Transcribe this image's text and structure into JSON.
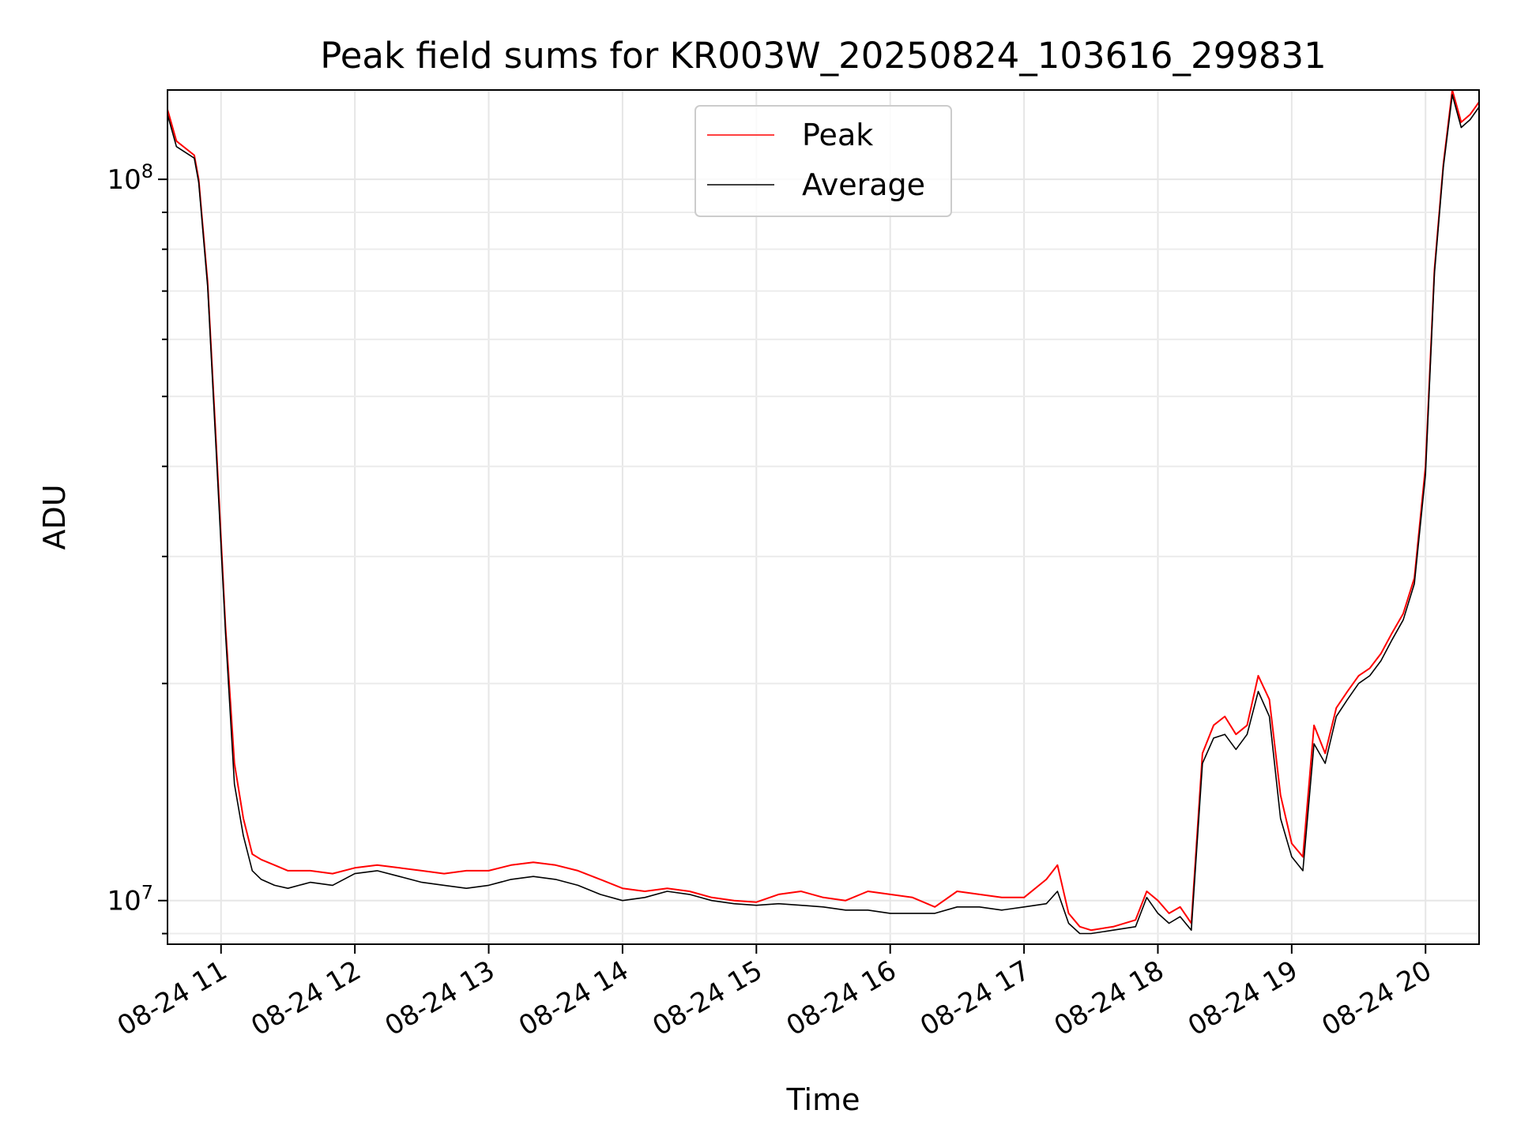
{
  "chart_data": {
    "type": "line",
    "title": "Peak field sums for KR003W_20250824_103616_299831",
    "xlabel": "Time",
    "ylabel": "ADU",
    "xlim": [
      "2025-08-24 10:36",
      "2025-08-24 20:24"
    ],
    "ylim": [
      8700000,
      133000000
    ],
    "yscale": "log",
    "grid": true,
    "legend_position": "upper center",
    "x_tick_labels": [
      "08-24 11",
      "08-24 12",
      "08-24 13",
      "08-24 14",
      "08-24 15",
      "08-24 16",
      "08-24 17",
      "08-24 18",
      "08-24 19",
      "08-24 20"
    ],
    "y_tick_labels": [
      {
        "value": 10000000,
        "base": "10",
        "exp": "7"
      },
      {
        "value": 100000000,
        "base": "10",
        "exp": "8"
      }
    ],
    "series": [
      {
        "name": "Peak",
        "color": "#ff0000",
        "x": [
          "2025-08-24 10:36",
          "2025-08-24 10:40",
          "2025-08-24 10:48",
          "2025-08-24 10:50",
          "2025-08-24 10:54",
          "2025-08-24 10:58",
          "2025-08-24 11:02",
          "2025-08-24 11:06",
          "2025-08-24 11:10",
          "2025-08-24 11:14",
          "2025-08-24 11:18",
          "2025-08-24 11:24",
          "2025-08-24 11:30",
          "2025-08-24 11:40",
          "2025-08-24 11:50",
          "2025-08-24 12:00",
          "2025-08-24 12:10",
          "2025-08-24 12:20",
          "2025-08-24 12:30",
          "2025-08-24 12:40",
          "2025-08-24 12:50",
          "2025-08-24 13:00",
          "2025-08-24 13:10",
          "2025-08-24 13:20",
          "2025-08-24 13:30",
          "2025-08-24 13:40",
          "2025-08-24 13:50",
          "2025-08-24 14:00",
          "2025-08-24 14:10",
          "2025-08-24 14:20",
          "2025-08-24 14:30",
          "2025-08-24 14:40",
          "2025-08-24 14:50",
          "2025-08-24 15:00",
          "2025-08-24 15:10",
          "2025-08-24 15:20",
          "2025-08-24 15:30",
          "2025-08-24 15:40",
          "2025-08-24 15:50",
          "2025-08-24 16:00",
          "2025-08-24 16:10",
          "2025-08-24 16:20",
          "2025-08-24 16:30",
          "2025-08-24 16:40",
          "2025-08-24 16:50",
          "2025-08-24 17:00",
          "2025-08-24 17:10",
          "2025-08-24 17:15",
          "2025-08-24 17:20",
          "2025-08-24 17:25",
          "2025-08-24 17:30",
          "2025-08-24 17:40",
          "2025-08-24 17:50",
          "2025-08-24 17:55",
          "2025-08-24 18:00",
          "2025-08-24 18:05",
          "2025-08-24 18:10",
          "2025-08-24 18:15",
          "2025-08-24 18:20",
          "2025-08-24 18:25",
          "2025-08-24 18:30",
          "2025-08-24 18:35",
          "2025-08-24 18:40",
          "2025-08-24 18:45",
          "2025-08-24 18:50",
          "2025-08-24 18:55",
          "2025-08-24 19:00",
          "2025-08-24 19:05",
          "2025-08-24 19:10",
          "2025-08-24 19:15",
          "2025-08-24 19:20",
          "2025-08-24 19:25",
          "2025-08-24 19:30",
          "2025-08-24 19:35",
          "2025-08-24 19:40",
          "2025-08-24 19:45",
          "2025-08-24 19:50",
          "2025-08-24 19:55",
          "2025-08-24 20:00",
          "2025-08-24 20:04",
          "2025-08-24 20:08",
          "2025-08-24 20:12",
          "2025-08-24 20:16",
          "2025-08-24 20:20",
          "2025-08-24 20:24"
        ],
        "y": [
          125000000,
          113000000,
          108000000,
          100000000,
          72000000,
          42000000,
          24000000,
          15500000,
          13000000,
          11600000,
          11400000,
          11200000,
          11000000,
          11000000,
          10900000,
          11100000,
          11200000,
          11100000,
          11000000,
          10900000,
          11000000,
          11000000,
          11200000,
          11300000,
          11200000,
          11000000,
          10700000,
          10400000,
          10300000,
          10400000,
          10300000,
          10100000,
          10000000,
          9950000,
          10200000,
          10300000,
          10100000,
          10000000,
          10300000,
          10200000,
          10100000,
          9800000,
          10300000,
          10200000,
          10100000,
          10100000,
          10700000,
          11200000,
          9600000,
          9200000,
          9100000,
          9200000,
          9400000,
          10300000,
          10000000,
          9600000,
          9800000,
          9300000,
          16000000,
          17500000,
          18000000,
          17000000,
          17500000,
          20500000,
          19000000,
          14000000,
          12000000,
          11500000,
          17500000,
          16000000,
          18500000,
          19500000,
          20500000,
          21000000,
          22000000,
          23500000,
          25000000,
          28000000,
          40000000,
          75000000,
          105000000,
          133000000,
          120000000,
          123000000,
          128000000
        ]
      },
      {
        "name": "Average",
        "color": "#000000",
        "x": [
          "2025-08-24 10:36",
          "2025-08-24 10:40",
          "2025-08-24 10:48",
          "2025-08-24 10:50",
          "2025-08-24 10:54",
          "2025-08-24 10:58",
          "2025-08-24 11:02",
          "2025-08-24 11:06",
          "2025-08-24 11:10",
          "2025-08-24 11:14",
          "2025-08-24 11:18",
          "2025-08-24 11:24",
          "2025-08-24 11:30",
          "2025-08-24 11:40",
          "2025-08-24 11:50",
          "2025-08-24 12:00",
          "2025-08-24 12:10",
          "2025-08-24 12:20",
          "2025-08-24 12:30",
          "2025-08-24 12:40",
          "2025-08-24 12:50",
          "2025-08-24 13:00",
          "2025-08-24 13:10",
          "2025-08-24 13:20",
          "2025-08-24 13:30",
          "2025-08-24 13:40",
          "2025-08-24 13:50",
          "2025-08-24 14:00",
          "2025-08-24 14:10",
          "2025-08-24 14:20",
          "2025-08-24 14:30",
          "2025-08-24 14:40",
          "2025-08-24 14:50",
          "2025-08-24 15:00",
          "2025-08-24 15:10",
          "2025-08-24 15:20",
          "2025-08-24 15:30",
          "2025-08-24 15:40",
          "2025-08-24 15:50",
          "2025-08-24 16:00",
          "2025-08-24 16:10",
          "2025-08-24 16:20",
          "2025-08-24 16:30",
          "2025-08-24 16:40",
          "2025-08-24 16:50",
          "2025-08-24 17:00",
          "2025-08-24 17:10",
          "2025-08-24 17:15",
          "2025-08-24 17:20",
          "2025-08-24 17:25",
          "2025-08-24 17:30",
          "2025-08-24 17:40",
          "2025-08-24 17:50",
          "2025-08-24 17:55",
          "2025-08-24 18:00",
          "2025-08-24 18:05",
          "2025-08-24 18:10",
          "2025-08-24 18:15",
          "2025-08-24 18:20",
          "2025-08-24 18:25",
          "2025-08-24 18:30",
          "2025-08-24 18:35",
          "2025-08-24 18:40",
          "2025-08-24 18:45",
          "2025-08-24 18:50",
          "2025-08-24 18:55",
          "2025-08-24 19:00",
          "2025-08-24 19:05",
          "2025-08-24 19:10",
          "2025-08-24 19:15",
          "2025-08-24 19:20",
          "2025-08-24 19:25",
          "2025-08-24 19:30",
          "2025-08-24 19:35",
          "2025-08-24 19:40",
          "2025-08-24 19:45",
          "2025-08-24 19:50",
          "2025-08-24 19:55",
          "2025-08-24 20:00",
          "2025-08-24 20:04",
          "2025-08-24 20:08",
          "2025-08-24 20:12",
          "2025-08-24 20:16",
          "2025-08-24 20:20",
          "2025-08-24 20:24"
        ],
        "y": [
          123000000,
          111000000,
          107000000,
          99000000,
          71000000,
          41000000,
          23500000,
          14500000,
          12300000,
          11000000,
          10700000,
          10500000,
          10400000,
          10600000,
          10500000,
          10900000,
          11000000,
          10800000,
          10600000,
          10500000,
          10400000,
          10500000,
          10700000,
          10800000,
          10700000,
          10500000,
          10200000,
          10000000,
          10100000,
          10300000,
          10200000,
          10000000,
          9900000,
          9850000,
          9900000,
          9850000,
          9800000,
          9700000,
          9700000,
          9600000,
          9600000,
          9600000,
          9800000,
          9800000,
          9700000,
          9800000,
          9900000,
          10300000,
          9300000,
          9000000,
          9000000,
          9100000,
          9200000,
          10100000,
          9600000,
          9300000,
          9500000,
          9100000,
          15500000,
          16800000,
          17000000,
          16200000,
          17000000,
          19500000,
          18000000,
          13000000,
          11500000,
          11000000,
          16500000,
          15500000,
          18000000,
          19000000,
          20000000,
          20500000,
          21500000,
          23000000,
          24500000,
          27500000,
          39000000,
          74000000,
          104000000,
          131000000,
          118000000,
          121000000,
          126000000
        ]
      }
    ]
  }
}
